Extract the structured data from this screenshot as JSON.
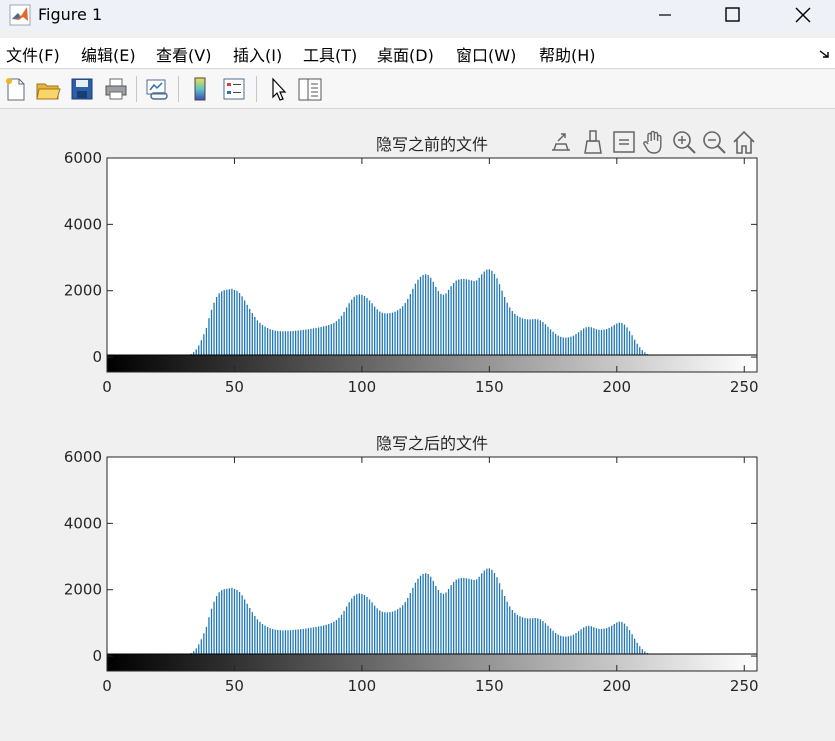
{
  "window": {
    "title": "Figure 1"
  },
  "menubar": {
    "items": [
      "文件(F)",
      "编辑(E)",
      "查看(V)",
      "插入(I)",
      "工具(T)",
      "桌面(D)",
      "窗口(W)",
      "帮助(H)"
    ]
  },
  "toolbar": {
    "buttons": [
      "new-figure-icon",
      "open-file-icon",
      "save-icon",
      "print-icon",
      "link-plot-icon",
      "insert-colorbar-icon",
      "insert-legend-icon",
      "edit-plot-pointer-icon",
      "property-inspector-icon"
    ]
  },
  "axes_toolbar": {
    "buttons": [
      "export-icon",
      "brush-icon",
      "data-tips-icon",
      "pan-hand-icon",
      "zoom-in-icon",
      "zoom-out-icon",
      "restore-view-home-icon"
    ]
  },
  "colors": {
    "bar": "#1f77b4",
    "axes_bg": "#ffffff",
    "figure_bg": "#f0f0f0"
  },
  "chart_data": [
    {
      "type": "bar",
      "title": "隐写之前的文件",
      "xlabel": "",
      "ylabel": "",
      "xlim": [
        0,
        255
      ],
      "ylim": [
        -450,
        6000
      ],
      "yticks": [
        0,
        2000,
        4000,
        6000
      ],
      "xticks": [
        0,
        50,
        100,
        150,
        200,
        250
      ],
      "grayscale_colorbar": true,
      "series": [
        {
          "x_start": 0,
          "values": [
            0,
            0,
            0,
            0,
            0,
            0,
            0,
            0,
            0,
            0,
            0,
            0,
            0,
            0,
            0,
            0,
            0,
            0,
            0,
            0,
            0,
            0,
            0,
            0,
            0,
            0,
            0,
            0,
            0,
            0,
            35,
            45,
            56,
            90,
            148,
            232,
            352,
            508,
            688,
            877,
            1171,
            1426,
            1639,
            1809,
            1923,
            1984,
            2015,
            2028,
            2044,
            2060,
            2024,
            1997,
            1932,
            1832,
            1706,
            1575,
            1450,
            1326,
            1210,
            1107,
            1031,
            968,
            919,
            876,
            840,
            814,
            797,
            786,
            779,
            775,
            777,
            778,
            781,
            787,
            795,
            803,
            810,
            819,
            829,
            839,
            852,
            866,
            879,
            893,
            908,
            925,
            944,
            967,
            994,
            1033,
            1083,
            1152,
            1246,
            1361,
            1496,
            1624,
            1735,
            1819,
            1865,
            1889,
            1875,
            1842,
            1784,
            1707,
            1620,
            1520,
            1439,
            1373,
            1336,
            1320,
            1316,
            1326,
            1340,
            1368,
            1411,
            1460,
            1533,
            1634,
            1753,
            1899,
            2059,
            2213,
            2331,
            2421,
            2477,
            2498,
            2474,
            2391,
            2268,
            2115,
            1989,
            1905,
            1878,
            1918,
            2025,
            2138,
            2232,
            2305,
            2337,
            2351,
            2355,
            2345,
            2331,
            2312,
            2295,
            2313,
            2390,
            2494,
            2579,
            2634,
            2644,
            2601,
            2504,
            2374,
            2197,
            2004,
            1810,
            1640,
            1499,
            1389,
            1304,
            1241,
            1199,
            1168,
            1148,
            1136,
            1135,
            1140,
            1146,
            1137,
            1109,
            1058,
            991,
            913,
            837,
            764,
            698,
            647,
            610,
            591,
            587,
            595,
            616,
            645,
            695,
            751,
            808,
            863,
            899,
            911,
            898,
            870,
            839,
            822,
            820,
            829,
            846,
            878,
            917,
            967,
            1012,
            1038,
            1028,
            978,
            895,
            783,
            658,
            526,
            403,
            297,
            208,
            141,
            95,
            64,
            43,
            32,
            26,
            20,
            16,
            11,
            8,
            5,
            3,
            2,
            1,
            0,
            0,
            0,
            0,
            0,
            0,
            0,
            0,
            0,
            0,
            0,
            0,
            0,
            0,
            0,
            0,
            0,
            0,
            0,
            0,
            0,
            0,
            0,
            0,
            0,
            0,
            0,
            0,
            0
          ]
        }
      ]
    },
    {
      "type": "bar",
      "title": "隐写之后的文件",
      "xlabel": "",
      "ylabel": "",
      "xlim": [
        0,
        255
      ],
      "ylim": [
        -450,
        6000
      ],
      "yticks": [
        0,
        2000,
        4000,
        6000
      ],
      "xticks": [
        0,
        50,
        100,
        150,
        200,
        250
      ],
      "grayscale_colorbar": true,
      "series": [
        {
          "x_start": 0,
          "values": [
            0,
            0,
            0,
            0,
            0,
            0,
            0,
            0,
            0,
            0,
            0,
            0,
            0,
            0,
            0,
            0,
            0,
            0,
            0,
            0,
            0,
            0,
            0,
            0,
            0,
            0,
            0,
            0,
            0,
            0,
            35,
            45,
            56,
            90,
            148,
            232,
            352,
            508,
            688,
            877,
            1171,
            1426,
            1639,
            1809,
            1923,
            1984,
            2015,
            2028,
            2044,
            2060,
            2024,
            1997,
            1932,
            1832,
            1706,
            1575,
            1450,
            1326,
            1210,
            1107,
            1031,
            968,
            919,
            876,
            840,
            814,
            797,
            786,
            779,
            775,
            777,
            778,
            781,
            787,
            795,
            803,
            810,
            819,
            829,
            839,
            852,
            866,
            879,
            893,
            908,
            925,
            944,
            967,
            994,
            1033,
            1083,
            1152,
            1246,
            1361,
            1496,
            1624,
            1735,
            1819,
            1865,
            1889,
            1875,
            1842,
            1784,
            1707,
            1620,
            1520,
            1439,
            1373,
            1336,
            1320,
            1316,
            1326,
            1340,
            1368,
            1411,
            1460,
            1533,
            1634,
            1753,
            1899,
            2059,
            2213,
            2331,
            2421,
            2477,
            2498,
            2474,
            2391,
            2268,
            2115,
            1989,
            1905,
            1878,
            1918,
            2025,
            2138,
            2232,
            2305,
            2337,
            2351,
            2355,
            2345,
            2331,
            2312,
            2295,
            2313,
            2390,
            2494,
            2579,
            2634,
            2644,
            2601,
            2504,
            2374,
            2197,
            2004,
            1810,
            1640,
            1499,
            1389,
            1304,
            1241,
            1199,
            1168,
            1148,
            1136,
            1135,
            1140,
            1146,
            1137,
            1109,
            1058,
            991,
            913,
            837,
            764,
            698,
            647,
            610,
            591,
            587,
            595,
            616,
            645,
            695,
            751,
            808,
            863,
            899,
            911,
            898,
            870,
            839,
            822,
            820,
            829,
            846,
            878,
            917,
            967,
            1012,
            1038,
            1028,
            978,
            895,
            783,
            658,
            526,
            403,
            297,
            208,
            141,
            95,
            64,
            43,
            32,
            26,
            20,
            16,
            11,
            8,
            5,
            3,
            2,
            1,
            0,
            0,
            0,
            0,
            0,
            0,
            0,
            0,
            0,
            0,
            0,
            0,
            0,
            0,
            0,
            0,
            0,
            0,
            0,
            0,
            0,
            0,
            0,
            0,
            0,
            0,
            0,
            0,
            0
          ]
        }
      ]
    }
  ]
}
